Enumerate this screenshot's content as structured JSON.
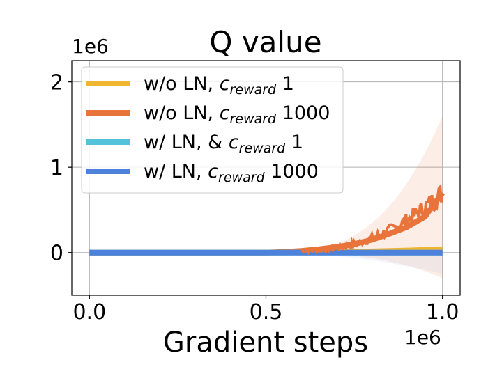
{
  "chart_data": {
    "type": "line",
    "title": "Q value",
    "xlabel": "Gradient steps",
    "ylabel": "",
    "x_offset_label": "1e6",
    "y_offset_label": "1e6",
    "xlim": [
      -0.05,
      1.05
    ],
    "ylim": [
      -0.5,
      2.25
    ],
    "xticks": [
      0.0,
      0.5,
      1.0
    ],
    "xtick_labels": [
      "0.0",
      "0.5",
      "1.0"
    ],
    "yticks": [
      0,
      1,
      2
    ],
    "ytick_labels": [
      "0",
      "1",
      "2"
    ],
    "grid": true,
    "legend_position": "upper-left",
    "series": [
      {
        "name_main": "w/o LN, ",
        "name_c": "c",
        "name_sub": "reward",
        "name_tail": " 1",
        "color": "#f0b632",
        "x": [
          0.0,
          0.5,
          0.6,
          0.7,
          0.8,
          0.9,
          1.0
        ],
        "y": [
          0.0,
          0.0,
          0.003,
          0.008,
          0.015,
          0.025,
          0.04
        ]
      },
      {
        "name_main": "w/o LN, ",
        "name_c": "c",
        "name_sub": "reward",
        "name_tail": " 1000",
        "color": "#e8743b",
        "x": [
          0.0,
          0.5,
          0.55,
          0.6,
          0.65,
          0.7,
          0.75,
          0.8,
          0.85,
          0.9,
          0.95,
          1.0
        ],
        "y": [
          0.0,
          0.0,
          0.008,
          0.02,
          0.04,
          0.065,
          0.1,
          0.15,
          0.22,
          0.3,
          0.42,
          0.7
        ]
      },
      {
        "name_main": "w/ LN, & ",
        "name_c": "c",
        "name_sub": "reward",
        "name_tail": " 1",
        "color": "#54c3d9",
        "x": [
          0.0,
          1.0
        ],
        "y": [
          0.0,
          0.0
        ]
      },
      {
        "name_main": "w/ LN, ",
        "name_c": "c",
        "name_sub": "reward",
        "name_tail": " 1000",
        "color": "#4c82db",
        "x": [
          0.0,
          1.0
        ],
        "y": [
          0.0,
          0.0
        ]
      }
    ]
  }
}
